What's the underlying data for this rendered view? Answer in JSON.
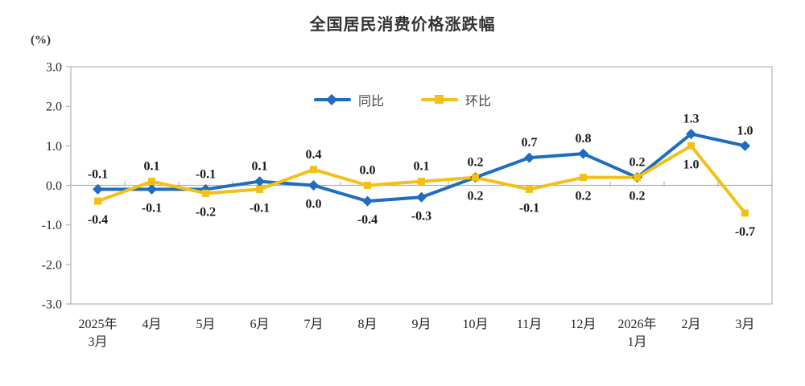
{
  "chart_data": {
    "type": "line",
    "title": "全国居民消费价格涨跌幅",
    "ylabel": "(%)",
    "ylim": [
      -3.0,
      3.0
    ],
    "ytick_step": 1.0,
    "ytick_labels": [
      "3.0",
      "2.0",
      "1.0",
      "0.0",
      "-1.0",
      "-2.0",
      "-3.0"
    ],
    "categories": [
      "2025年\n3月",
      "4月",
      "5月",
      "6月",
      "7月",
      "8月",
      "9月",
      "10月",
      "11月",
      "12月",
      "2026年\n1月",
      "2月",
      "3月"
    ],
    "series": [
      {
        "name": "同比",
        "color": "#1f6cc0",
        "marker": "diamond",
        "values": [
          -0.1,
          -0.1,
          -0.1,
          0.1,
          0.0,
          -0.4,
          -0.3,
          0.2,
          0.7,
          0.8,
          0.2,
          1.3,
          1.0
        ]
      },
      {
        "name": "环比",
        "color": "#f2c018",
        "marker": "square",
        "values": [
          -0.4,
          0.1,
          -0.2,
          -0.1,
          0.4,
          0.0,
          0.1,
          0.2,
          -0.1,
          0.2,
          0.2,
          1.0,
          -0.7
        ]
      }
    ],
    "legend_position": "top-center",
    "grid": false,
    "axis_color": "#b3b3b3",
    "label_color": "#1a1a1a"
  }
}
